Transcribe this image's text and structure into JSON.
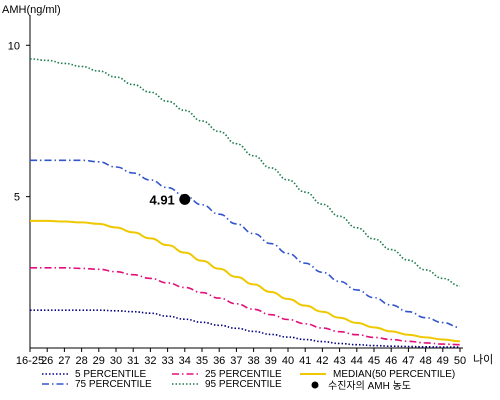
{
  "chart_data": {
    "type": "line",
    "ylabel": "AMH(ng/ml)",
    "xlabel": "나이",
    "categories": [
      "16-25",
      "26",
      "27",
      "28",
      "29",
      "30",
      "31",
      "32",
      "33",
      "34",
      "35",
      "36",
      "37",
      "38",
      "39",
      "40",
      "41",
      "42",
      "43",
      "44",
      "45",
      "46",
      "47",
      "48",
      "49",
      "50"
    ],
    "yticks": [
      5,
      10
    ],
    "ylim": [
      0,
      11
    ],
    "grid": false,
    "series": [
      {
        "name": "5 PERCENTILE",
        "color": "#000080",
        "dash": "dot",
        "values": [
          1.25,
          1.25,
          1.25,
          1.25,
          1.25,
          1.23,
          1.2,
          1.15,
          1.05,
          0.95,
          0.85,
          0.75,
          0.65,
          0.55,
          0.45,
          0.36,
          0.28,
          0.21,
          0.15,
          0.11,
          0.08,
          0.06,
          0.05,
          0.04,
          0.03,
          0.03
        ]
      },
      {
        "name": "25 PERCENTILE",
        "color": "#e0107a",
        "dash": "dashdot",
        "values": [
          2.65,
          2.65,
          2.65,
          2.63,
          2.6,
          2.52,
          2.42,
          2.3,
          2.15,
          2.0,
          1.83,
          1.65,
          1.46,
          1.28,
          1.1,
          0.94,
          0.8,
          0.66,
          0.54,
          0.44,
          0.35,
          0.28,
          0.22,
          0.17,
          0.13,
          0.11
        ]
      },
      {
        "name": "MEDIAN(50 PERCENTILE)",
        "color": "#f0c800",
        "dash": "solid",
        "values": [
          4.2,
          4.2,
          4.18,
          4.15,
          4.1,
          3.98,
          3.82,
          3.62,
          3.4,
          3.15,
          2.88,
          2.62,
          2.35,
          2.1,
          1.85,
          1.62,
          1.4,
          1.2,
          1.0,
          0.83,
          0.68,
          0.55,
          0.44,
          0.35,
          0.28,
          0.22
        ]
      },
      {
        "name": "75 PERCENTILE",
        "color": "#3355cc",
        "dash": "dashdot",
        "values": [
          6.2,
          6.2,
          6.2,
          6.2,
          6.15,
          5.98,
          5.78,
          5.55,
          5.3,
          5.03,
          4.73,
          4.42,
          4.1,
          3.78,
          3.45,
          3.12,
          2.8,
          2.5,
          2.2,
          1.92,
          1.66,
          1.42,
          1.2,
          1.0,
          0.84,
          0.68
        ]
      },
      {
        "name": "95 PERCENTILE",
        "color": "#1a7a4a",
        "dash": "dot",
        "values": [
          9.55,
          9.5,
          9.4,
          9.3,
          9.15,
          8.95,
          8.7,
          8.45,
          8.15,
          7.85,
          7.5,
          7.15,
          6.75,
          6.35,
          5.95,
          5.55,
          5.15,
          4.75,
          4.35,
          3.97,
          3.6,
          3.25,
          2.9,
          2.58,
          2.3,
          2.05
        ]
      }
    ],
    "annotation": {
      "category": "34",
      "value": 4.91,
      "label": "4.91",
      "legend": "수진자의 AMH 농도"
    }
  }
}
